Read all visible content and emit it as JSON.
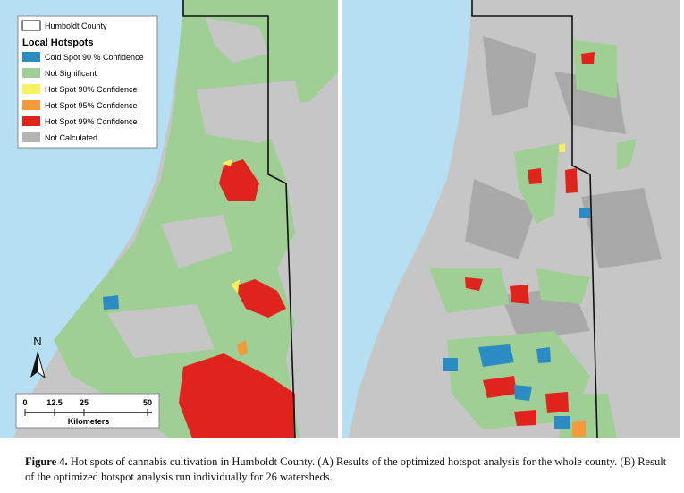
{
  "legend": {
    "county": "Humboldt County",
    "title": "Local Hotspots",
    "items": [
      {
        "label": "Cold Spot 90 % Confidence",
        "color": "#2b8cc4"
      },
      {
        "label": "Not Significant",
        "color": "#9fcf95"
      },
      {
        "label": "Hot Spot 90% Confidence",
        "color": "#f7f060"
      },
      {
        "label": "Hot Spot 95% Confidence",
        "color": "#f39a3a"
      },
      {
        "label": "Hot Spot 99% Confidence",
        "color": "#e0231c"
      },
      {
        "label": "Not Calculated",
        "color": "#b4b4b4"
      }
    ]
  },
  "north_arrow": "N",
  "scale_bar": {
    "ticks": [
      "0",
      "12.5",
      "25",
      "50"
    ],
    "unit": "Kilometers"
  },
  "caption": {
    "label": "Figure 4.",
    "text": "Hot spots of cannabis cultivation in Humboldt County. (A) Results of the optimized hotspot analysis for the whole county. (B) Result of the optimized hotspot analysis run individually for 26 watersheds."
  }
}
